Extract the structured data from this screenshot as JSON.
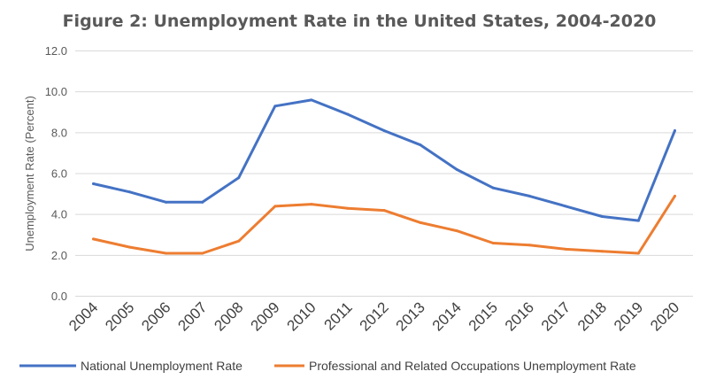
{
  "chart_data": {
    "type": "line",
    "title": "Figure 2: Unemployment Rate in the United States, 2004-2020",
    "ylabel": "Unemployment Rate (Percent)",
    "xlabel": "",
    "ylim": [
      0,
      12
    ],
    "yticks": [
      "0.0",
      "2.0",
      "4.0",
      "6.0",
      "8.0",
      "10.0",
      "12.0"
    ],
    "categories": [
      "2004",
      "2005",
      "2006",
      "2007",
      "2008",
      "2009",
      "2010",
      "2011",
      "2012",
      "2013",
      "2014",
      "2015",
      "2016",
      "2017",
      "2018",
      "2019",
      "2020"
    ],
    "series": [
      {
        "name": "National Unemployment Rate",
        "color": "#4472c4",
        "values": [
          5.5,
          5.1,
          4.6,
          4.6,
          5.8,
          9.3,
          9.6,
          8.9,
          8.1,
          7.4,
          6.2,
          5.3,
          4.9,
          4.4,
          3.9,
          3.7,
          8.1
        ]
      },
      {
        "name": "Professional and Related Occupations Unemployment Rate",
        "color": "#ed7d31",
        "values": [
          2.8,
          2.4,
          2.1,
          2.1,
          2.7,
          4.4,
          4.5,
          4.3,
          4.2,
          3.6,
          3.2,
          2.6,
          2.5,
          2.3,
          2.2,
          2.1,
          4.9
        ]
      }
    ],
    "grid": true,
    "legend": "bottom"
  }
}
